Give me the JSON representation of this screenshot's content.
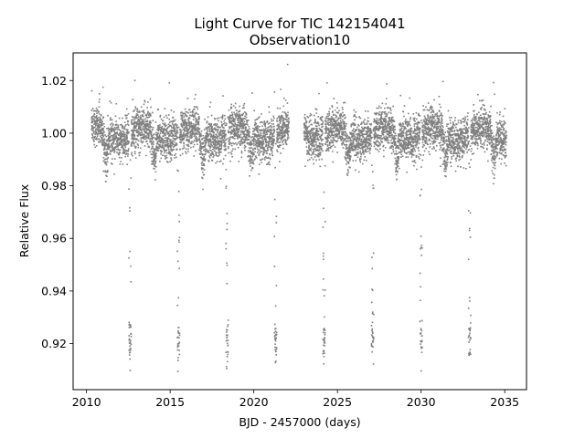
{
  "chart_data": {
    "type": "scatter",
    "title": "Light Curve for TIC 142154041",
    "subtitle": "Observation10",
    "xlabel": "BJD - 2457000 (days)",
    "ylabel": "Relative Flux",
    "xlim": [
      2009.2,
      2036.3
    ],
    "ylim": [
      0.9025,
      1.0305
    ],
    "x_ticks": [
      2010,
      2015,
      2020,
      2025,
      2030,
      2035
    ],
    "x_tick_labels": [
      "2010",
      "2015",
      "2020",
      "2025",
      "2030",
      "2035"
    ],
    "y_ticks": [
      0.92,
      0.94,
      0.96,
      0.98,
      1.0,
      1.02
    ],
    "y_tick_labels": [
      "0.92",
      "0.94",
      "0.96",
      "0.98",
      "1.00",
      "1.02"
    ],
    "grid": false,
    "marker_color": "#7f7f7f",
    "series": [
      {
        "observation_windows": [
          [
            2010.3,
            2022.1
          ],
          [
            2023.0,
            2035.1
          ]
        ],
        "baseline_flux": 1.0,
        "scatter_std": 0.004,
        "transit_period_days": 2.9,
        "transit_centers": [
          12.6,
          15.5,
          18.4,
          21.3,
          24.2,
          27.1,
          30.0,
          32.9
        ],
        "transit_depth_min": 0.909,
        "transit_bottom_flux": 0.921,
        "transit_duration_days": 0.14,
        "secondary_dip_centers": [
          11.15,
          14.05,
          16.95,
          19.85,
          25.65,
          28.55,
          31.45,
          34.35
        ],
        "secondary_dip_flux": 0.988
      }
    ]
  }
}
